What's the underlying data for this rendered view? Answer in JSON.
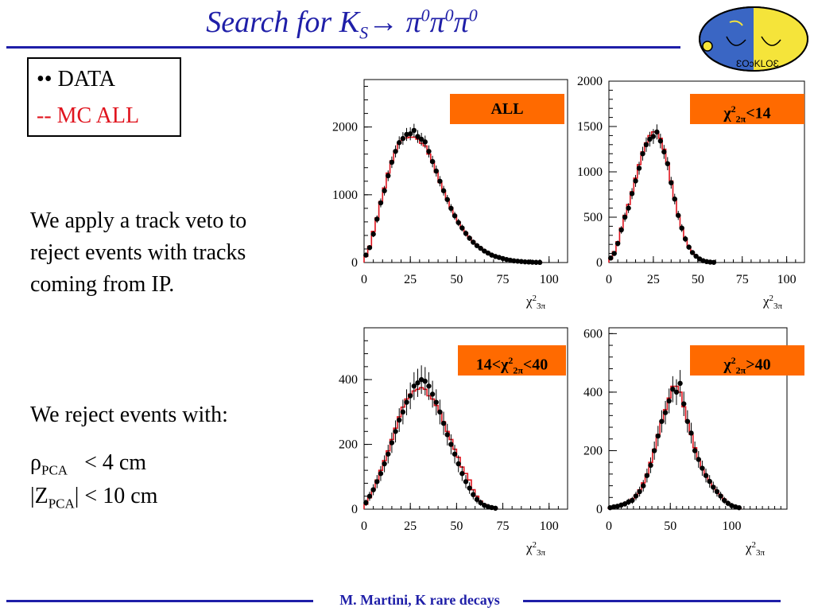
{
  "header": {
    "title_prefix": "Search for K",
    "title_sub": "S",
    "title_arrow": "→ ",
    "pi": "π",
    "zero": "0"
  },
  "legend": {
    "data_label": "•• DATA",
    "mc_label": "--  MC ALL"
  },
  "text": {
    "paragraph1": "We apply a track veto to reject events with tracks coming from IP.",
    "paragraph2": "We reject events with:",
    "cut1_sym": "ρ",
    "cut1_sub": "PCA",
    "cut1_rest": "< 4 cm",
    "cut2_pre": "|Z",
    "cut2_sub": "PCA",
    "cut2_rest": "| < 10 cm"
  },
  "footer": {
    "text": "M. Martini, K rare decays"
  },
  "colors": {
    "accent": "#1f1fa8",
    "mc": "#e0141e",
    "label_box": "#ff6a00",
    "logo_blue": "#3a66c4",
    "logo_yellow": "#f5e43a"
  },
  "chart_data": [
    {
      "type": "histogram",
      "label": "ALL",
      "xlabel": "χ²3π",
      "xticks": [
        0,
        25,
        50,
        75,
        100
      ],
      "yticks": [
        0,
        1000,
        2000
      ],
      "xlim": [
        0,
        110
      ],
      "ylim": [
        0,
        2700
      ],
      "data_x": [
        1,
        3,
        5,
        7,
        9,
        11,
        13,
        15,
        17,
        19,
        21,
        23,
        25,
        27,
        29,
        31,
        33,
        35,
        37,
        39,
        41,
        43,
        45,
        47,
        49,
        51,
        53,
        55,
        57,
        59,
        61,
        63,
        65,
        67,
        69,
        71,
        73,
        75,
        77,
        79,
        81,
        83,
        85,
        87,
        89,
        91,
        93,
        95
      ],
      "data_y": [
        110,
        220,
        420,
        640,
        880,
        1060,
        1280,
        1480,
        1640,
        1770,
        1830,
        1890,
        1900,
        1950,
        1860,
        1820,
        1780,
        1640,
        1490,
        1350,
        1200,
        1060,
        930,
        800,
        690,
        590,
        510,
        430,
        360,
        300,
        250,
        210,
        170,
        140,
        110,
        90,
        75,
        60,
        45,
        35,
        25,
        20,
        15,
        10,
        8,
        5,
        3,
        2
      ],
      "mc_y": [
        90,
        240,
        460,
        660,
        900,
        1100,
        1320,
        1500,
        1650,
        1760,
        1820,
        1840,
        1850,
        1850,
        1820,
        1760,
        1720,
        1600,
        1480,
        1330,
        1180,
        1050,
        930,
        810,
        700,
        600,
        510,
        440,
        370,
        310,
        260,
        215,
        175,
        145,
        115,
        95,
        78,
        62,
        48,
        38,
        30,
        22,
        16,
        12,
        8,
        5,
        3,
        2
      ]
    },
    {
      "type": "histogram",
      "label": "χ²2π<14",
      "xlabel": "χ²3π",
      "xticks": [
        0,
        25,
        50,
        75,
        100
      ],
      "yticks": [
        0,
        500,
        1000,
        1500,
        2000
      ],
      "xlim": [
        0,
        110
      ],
      "ylim": [
        0,
        2000
      ],
      "data_x": [
        1,
        3,
        5,
        7,
        9,
        11,
        13,
        15,
        17,
        19,
        21,
        23,
        25,
        27,
        29,
        31,
        33,
        35,
        37,
        39,
        41,
        43,
        45,
        47,
        49,
        51,
        53,
        55,
        57,
        59
      ],
      "data_y": [
        50,
        100,
        210,
        360,
        500,
        600,
        760,
        900,
        1040,
        1200,
        1300,
        1360,
        1390,
        1440,
        1340,
        1220,
        1090,
        880,
        700,
        520,
        380,
        260,
        170,
        110,
        70,
        40,
        20,
        10,
        5,
        2
      ],
      "mc_y": [
        40,
        120,
        230,
        380,
        520,
        640,
        780,
        930,
        1080,
        1220,
        1320,
        1400,
        1440,
        1440,
        1370,
        1250,
        1100,
        900,
        700,
        520,
        380,
        260,
        170,
        110,
        70,
        40,
        22,
        12,
        6,
        3
      ]
    },
    {
      "type": "histogram",
      "label": "14<χ²2π<40",
      "xlabel": "χ²3π",
      "xticks": [
        0,
        25,
        50,
        75,
        100
      ],
      "yticks": [
        0,
        200,
        400
      ],
      "xlim": [
        0,
        110
      ],
      "ylim": [
        0,
        560
      ],
      "data_x": [
        1,
        3,
        5,
        7,
        9,
        11,
        13,
        15,
        17,
        19,
        21,
        23,
        25,
        27,
        29,
        31,
        33,
        35,
        37,
        39,
        41,
        43,
        45,
        47,
        49,
        51,
        53,
        55,
        57,
        59,
        61,
        63,
        65,
        67,
        69,
        71
      ],
      "data_y": [
        20,
        40,
        60,
        85,
        110,
        140,
        170,
        205,
        240,
        275,
        300,
        330,
        350,
        380,
        390,
        400,
        395,
        380,
        355,
        330,
        300,
        265,
        230,
        200,
        170,
        140,
        110,
        85,
        65,
        45,
        30,
        20,
        12,
        8,
        5,
        3
      ],
      "mc_y": [
        15,
        35,
        60,
        90,
        120,
        150,
        180,
        215,
        250,
        285,
        315,
        340,
        355,
        365,
        370,
        375,
        370,
        350,
        340,
        320,
        300,
        270,
        240,
        215,
        185,
        160,
        130,
        110,
        90,
        60,
        40,
        25,
        15,
        8,
        4,
        2
      ]
    },
    {
      "type": "histogram",
      "label": "χ²2π>40",
      "xlabel": "χ²3π",
      "xticks": [
        0,
        50,
        100
      ],
      "yticks": [
        0,
        200,
        400,
        600
      ],
      "xlim": [
        0,
        145
      ],
      "ylim": [
        0,
        620
      ],
      "data_x": [
        1,
        4,
        7,
        10,
        13,
        16,
        19,
        22,
        25,
        28,
        31,
        34,
        37,
        40,
        43,
        46,
        49,
        52,
        55,
        58,
        61,
        64,
        67,
        70,
        73,
        76,
        79,
        82,
        85,
        88,
        91,
        94,
        97,
        100,
        103,
        106
      ],
      "data_y": [
        5,
        8,
        10,
        14,
        18,
        25,
        30,
        45,
        60,
        80,
        115,
        150,
        200,
        250,
        300,
        330,
        370,
        410,
        400,
        430,
        360,
        300,
        260,
        200,
        170,
        140,
        115,
        95,
        75,
        60,
        45,
        30,
        20,
        12,
        8,
        5
      ],
      "mc_y": [
        4,
        6,
        10,
        14,
        20,
        26,
        35,
        48,
        66,
        90,
        120,
        160,
        205,
        255,
        300,
        340,
        380,
        420,
        420,
        400,
        350,
        300,
        255,
        210,
        170,
        140,
        115,
        95,
        78,
        62,
        48,
        34,
        22,
        14,
        8,
        4
      ]
    }
  ]
}
